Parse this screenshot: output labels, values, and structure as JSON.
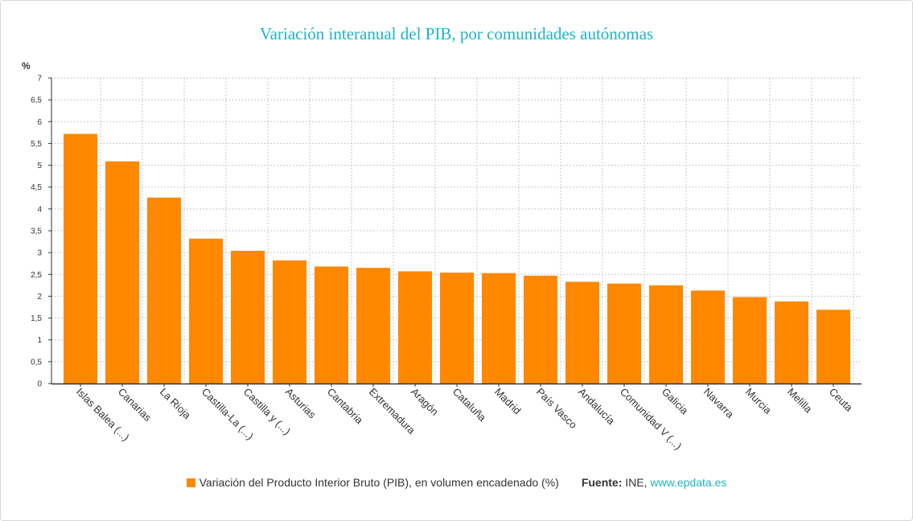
{
  "colors": {
    "bar": "#ff8800",
    "title": "#1eb4c8",
    "link": "#1eb4c8",
    "grid": "#c8c8c8",
    "axis": "#333333"
  },
  "chart_data": {
    "type": "bar",
    "title": "Variación interanual del PIB, por comunidades autónomas",
    "ylabel": "%",
    "xlabel": "",
    "ylim": [
      0,
      7
    ],
    "ytick_step": 0.5,
    "yticks": [
      "0",
      "0,5",
      "1",
      "1,5",
      "2",
      "2,5",
      "3",
      "3,5",
      "4",
      "4,5",
      "5",
      "5,5",
      "6",
      "6,5",
      "7"
    ],
    "grid": true,
    "categories": [
      "Islas Balea (...)",
      "Canarias",
      "La Rioja",
      "Castilla-La (...)",
      "Castilla y (...)",
      "Asturias",
      "Cantabria",
      "Extremadura",
      "Aragón",
      "Cataluña",
      "Madrid",
      "País Vasco",
      "Andalucía",
      "Comunidad V (...)",
      "Galicia",
      "Navarra",
      "Murcia",
      "Melilla",
      "Ceuta"
    ],
    "series": [
      {
        "name": "Variación del Producto Interior Bruto (PIB), en volumen encadenado (%)",
        "values": [
          5.72,
          5.09,
          4.26,
          3.32,
          3.04,
          2.82,
          2.68,
          2.65,
          2.57,
          2.54,
          2.53,
          2.47,
          2.33,
          2.29,
          2.25,
          2.13,
          1.98,
          1.88,
          1.69
        ]
      }
    ],
    "legend_position": "bottom"
  },
  "footer": {
    "source_label": "Fuente:",
    "source_text": "INE,",
    "source_link": "www.epdata.es"
  }
}
